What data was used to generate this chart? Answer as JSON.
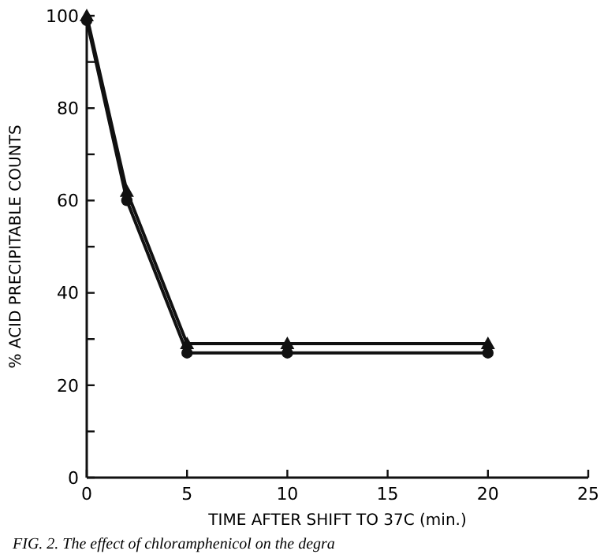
{
  "chart_data": {
    "type": "line",
    "xlabel": "TIME AFTER SHIFT TO 37C (min.)",
    "ylabel": "% ACID PRECIPITABLE COUNTS",
    "annotations": [
      "FIG. 2. The effect of chloramphenicol on the degra"
    ],
    "x": [
      0,
      2,
      5,
      10,
      20
    ],
    "series": [
      {
        "color": "#111111",
        "marker": "triangle",
        "values": [
          100,
          62,
          29,
          29,
          29
        ]
      },
      {
        "color": "#111111",
        "marker": "circle",
        "values": [
          99,
          60,
          27,
          27,
          27
        ]
      }
    ],
    "xlim": [
      0,
      25
    ],
    "xticks": [
      0,
      5,
      10,
      15,
      20,
      25
    ],
    "ylim": [
      0,
      100
    ],
    "yticks": [
      0,
      {
        "value": 10,
        "label": null
      },
      20,
      {
        "value": 30,
        "label": null
      },
      40,
      {
        "value": 50,
        "label": null
      },
      60,
      {
        "value": 70,
        "label": null
      },
      80,
      {
        "value": 90,
        "label": null
      },
      100
    ],
    "line_style": "solid"
  }
}
